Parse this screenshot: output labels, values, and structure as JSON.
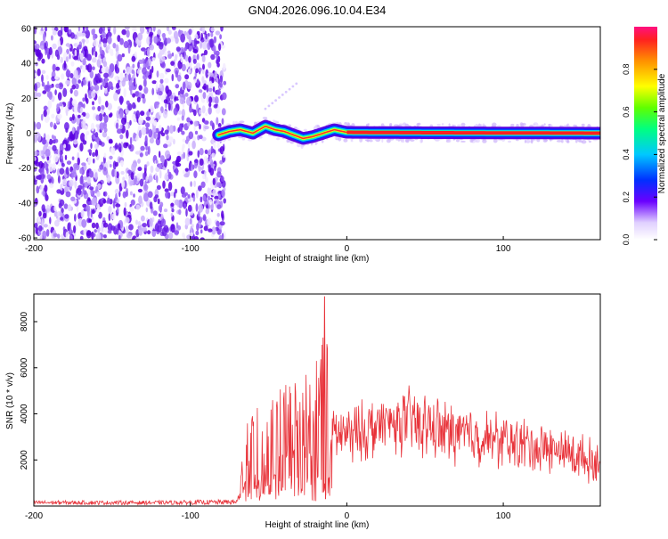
{
  "title": "GN04.2026.096.10.04.E34",
  "chart_data": [
    {
      "type": "heatmap",
      "title": "GN04.2026.096.10.04.E34",
      "xlabel": "Height of straight line (km)",
      "ylabel": "Frequency (Hz)",
      "xlim": [
        -200,
        162
      ],
      "ylim": [
        -61,
        61
      ],
      "x_ticks": [
        "-200",
        "-100",
        "0",
        "100"
      ],
      "y_ticks": [
        "-60",
        "-40",
        "-20",
        "0",
        "20",
        "40",
        "60"
      ],
      "noise_region_km": [
        -200,
        -78
      ],
      "signal_trace": [
        {
          "x": -82,
          "y": -1
        },
        {
          "x": -75,
          "y": 1
        },
        {
          "x": -68,
          "y": 2
        },
        {
          "x": -60,
          "y": 0
        },
        {
          "x": -52,
          "y": 4
        },
        {
          "x": -46,
          "y": 2
        },
        {
          "x": -40,
          "y": 1
        },
        {
          "x": -34,
          "y": -1
        },
        {
          "x": -28,
          "y": -3
        },
        {
          "x": -22,
          "y": -2
        },
        {
          "x": -15,
          "y": 0
        },
        {
          "x": -8,
          "y": 2
        },
        {
          "x": 0,
          "y": 0.5
        },
        {
          "x": 40,
          "y": 0.3
        },
        {
          "x": 80,
          "y": 0.2
        },
        {
          "x": 120,
          "y": 0.1
        },
        {
          "x": 162,
          "y": 0
        }
      ],
      "colorbar": {
        "label": "Normalized spectral amplitude",
        "range": [
          0,
          1
        ],
        "ticks": [
          "0.0",
          "0.2",
          "0.4",
          "0.6",
          "0.8"
        ]
      }
    },
    {
      "type": "line",
      "xlabel": "Height of straight line (km)",
      "ylabel": "SNR (10 * v/v)",
      "xlim": [
        -200,
        162
      ],
      "ylim": [
        0,
        9200
      ],
      "x_ticks": [
        "-200",
        "-100",
        "0",
        "100"
      ],
      "y_ticks": [
        "2000",
        "4000",
        "6000",
        "8000"
      ],
      "series": [
        {
          "name": "SNR",
          "color": "#e8333a",
          "envelope": [
            {
              "x": -200,
              "y": 180
            },
            {
              "x": -120,
              "y": 170
            },
            {
              "x": -70,
              "y": 230
            },
            {
              "x": -65,
              "y": 3200
            },
            {
              "x": -58,
              "y": 4300
            },
            {
              "x": -50,
              "y": 4500
            },
            {
              "x": -40,
              "y": 5000
            },
            {
              "x": -30,
              "y": 5600
            },
            {
              "x": -20,
              "y": 5900
            },
            {
              "x": -14,
              "y": 9100
            },
            {
              "x": -10,
              "y": 4200
            },
            {
              "x": 0,
              "y": 4000
            },
            {
              "x": 20,
              "y": 4500
            },
            {
              "x": 40,
              "y": 4800
            },
            {
              "x": 60,
              "y": 4300
            },
            {
              "x": 80,
              "y": 4000
            },
            {
              "x": 100,
              "y": 3700
            },
            {
              "x": 120,
              "y": 3400
            },
            {
              "x": 140,
              "y": 3100
            },
            {
              "x": 162,
              "y": 2500
            }
          ]
        }
      ]
    }
  ]
}
